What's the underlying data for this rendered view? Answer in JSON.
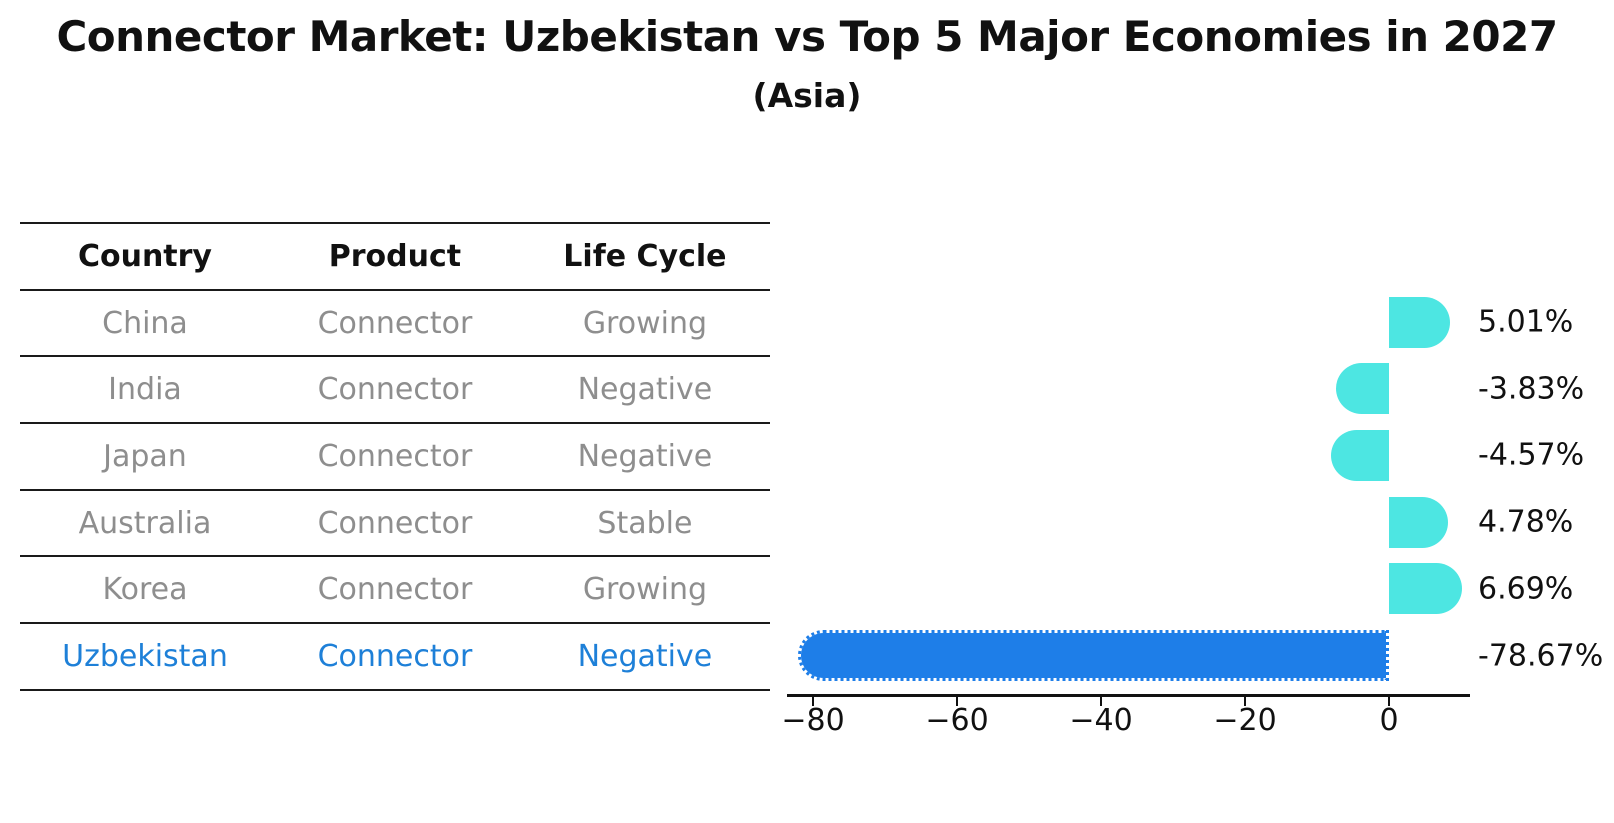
{
  "title": "Connector Market: Uzbekistan vs Top 5 Major Economies in 2027",
  "subtitle": "(Asia)",
  "table": {
    "headers": [
      "Country",
      "Product",
      "Life Cycle"
    ],
    "rows": [
      {
        "country": "China",
        "product": "Connector",
        "life_cycle": "Growing",
        "highlight": false
      },
      {
        "country": "India",
        "product": "Connector",
        "life_cycle": "Negative",
        "highlight": false
      },
      {
        "country": "Japan",
        "product": "Connector",
        "life_cycle": "Negative",
        "highlight": false
      },
      {
        "country": "Australia",
        "product": "Connector",
        "life_cycle": "Stable",
        "highlight": false
      },
      {
        "country": "Korea",
        "product": "Connector",
        "life_cycle": "Growing",
        "highlight": false
      },
      {
        "country": "Uzbekistan",
        "product": "Connector",
        "life_cycle": "Negative",
        "highlight": true
      }
    ]
  },
  "chart_data": {
    "type": "bar",
    "orientation": "horizontal",
    "categories": [
      "China",
      "India",
      "Japan",
      "Australia",
      "Korea",
      "Uzbekistan"
    ],
    "values": [
      5.01,
      -3.83,
      -4.57,
      4.78,
      6.69,
      -78.67
    ],
    "value_labels": [
      "5.01%",
      "-3.83%",
      "-4.57%",
      "4.78%",
      "6.69%",
      "-78.67%"
    ],
    "x_ticks": [
      -80,
      -60,
      -40,
      -20,
      0
    ],
    "x_tick_labels": [
      "−80",
      "−60",
      "−40",
      "−20",
      "0"
    ],
    "xlim": [
      -83.6,
      11.3
    ],
    "grid": false,
    "legend": "none",
    "title": "Connector Market: Uzbekistan vs Top 5 Major Economies in 2027",
    "subtitle": "(Asia)"
  },
  "colors": {
    "bar_default": "#4de6e2",
    "bar_highlight": "#1e7ee8",
    "highlight_text": "#1e80d8",
    "table_text": "#8e8e8e",
    "header_text": "#111111",
    "axis": "#111111"
  }
}
